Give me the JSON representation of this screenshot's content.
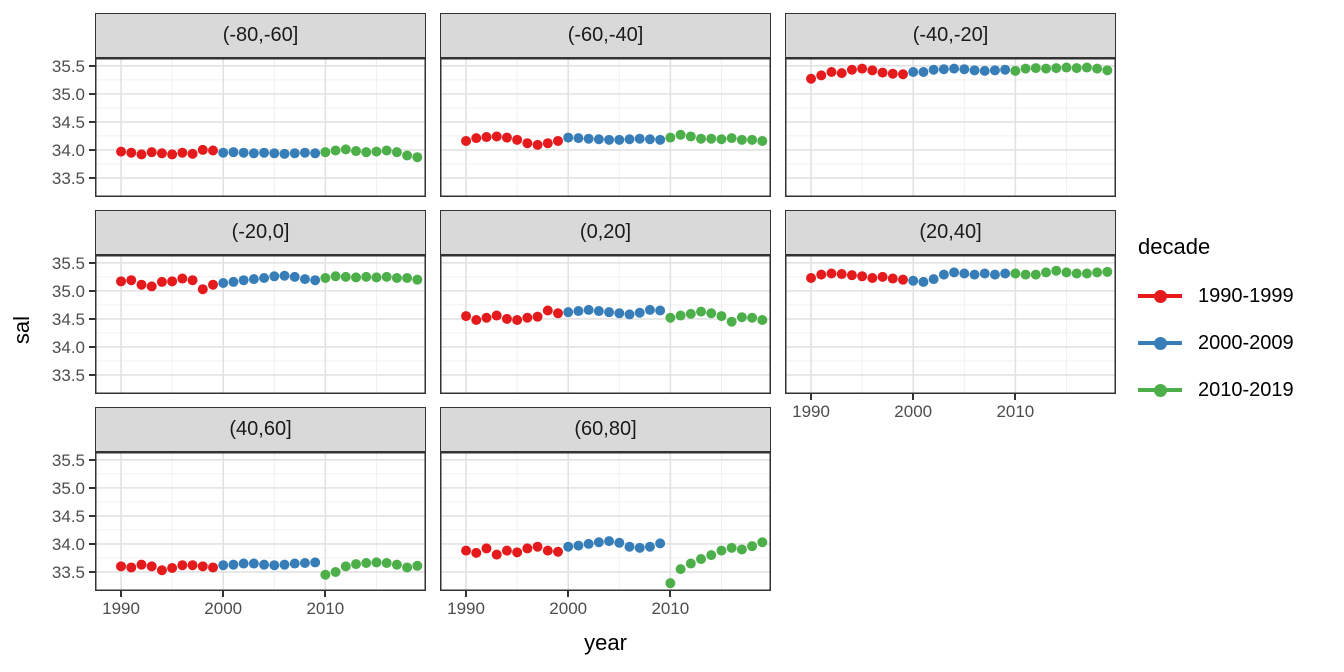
{
  "chart_data": {
    "type": "scatter",
    "title": "",
    "xlabel": "year",
    "ylabel": "sal",
    "legend_title": "decade",
    "legend_position": "right",
    "grid": true,
    "xlim": [
      1987.45,
      2019.85
    ],
    "ylim": [
      33.16,
      35.64
    ],
    "x_ticks": {
      "values": [
        1990,
        2000,
        2010
      ],
      "labels": [
        "1990",
        "2000",
        "2010"
      ]
    },
    "y_ticks": {
      "values": [
        35.5,
        35.0,
        34.5,
        34.0,
        33.5
      ],
      "labels": [
        "35.5",
        "35.0",
        "34.5",
        "34.0",
        "33.5"
      ]
    },
    "x_minor": [
      1995,
      2005,
      2015
    ],
    "y_minor": [
      35.25,
      34.75,
      34.25,
      33.75
    ],
    "series": [
      {
        "name": "1990-1999",
        "color": "#E41A1C",
        "years": [
          1990,
          1991,
          1992,
          1993,
          1994,
          1995,
          1996,
          1997,
          1998,
          1999
        ]
      },
      {
        "name": "2000-2009",
        "color": "#377EB8",
        "years": [
          2000,
          2001,
          2002,
          2003,
          2004,
          2005,
          2006,
          2007,
          2008,
          2009
        ]
      },
      {
        "name": "2010-2019",
        "color": "#4DAF4A",
        "years": [
          2010,
          2011,
          2012,
          2013,
          2014,
          2015,
          2016,
          2017,
          2018,
          2019
        ]
      }
    ],
    "facets": [
      {
        "label": "(-80,-60]",
        "values": {
          "1990-1999": [
            33.97,
            33.95,
            33.92,
            33.96,
            33.94,
            33.92,
            33.95,
            33.93,
            34.0,
            33.99
          ],
          "2000-2009": [
            33.95,
            33.96,
            33.95,
            33.94,
            33.95,
            33.94,
            33.93,
            33.94,
            33.95,
            33.94
          ],
          "2010-2019": [
            33.96,
            33.99,
            34.01,
            33.98,
            33.96,
            33.97,
            33.99,
            33.96,
            33.9,
            33.87
          ]
        }
      },
      {
        "label": "(-60,-40]",
        "values": {
          "1990-1999": [
            34.16,
            34.21,
            34.23,
            34.24,
            34.22,
            34.18,
            34.12,
            34.09,
            34.12,
            34.16
          ],
          "2000-2009": [
            34.22,
            34.21,
            34.2,
            34.19,
            34.18,
            34.18,
            34.19,
            34.2,
            34.19,
            34.18
          ],
          "2010-2019": [
            34.22,
            34.27,
            34.24,
            34.2,
            34.2,
            34.19,
            34.21,
            34.18,
            34.18,
            34.16
          ]
        }
      },
      {
        "label": "(-40,-20]",
        "values": {
          "1990-1999": [
            35.27,
            35.33,
            35.39,
            35.37,
            35.43,
            35.45,
            35.42,
            35.38,
            35.36,
            35.35
          ],
          "2000-2009": [
            35.39,
            35.39,
            35.43,
            35.44,
            35.45,
            35.44,
            35.42,
            35.41,
            35.42,
            35.43
          ],
          "2010-2019": [
            35.41,
            35.45,
            35.46,
            35.45,
            35.46,
            35.47,
            35.46,
            35.47,
            35.45,
            35.42
          ]
        }
      },
      {
        "label": "(-20,0]",
        "values": {
          "1990-1999": [
            35.17,
            35.19,
            35.11,
            35.08,
            35.16,
            35.17,
            35.22,
            35.19,
            35.03,
            35.11
          ],
          "2000-2009": [
            35.14,
            35.16,
            35.19,
            35.21,
            35.23,
            35.26,
            35.27,
            35.25,
            35.21,
            35.19
          ],
          "2010-2019": [
            35.23,
            35.26,
            35.25,
            35.24,
            35.25,
            35.24,
            35.25,
            35.23,
            35.23,
            35.2
          ]
        }
      },
      {
        "label": "(0,20]",
        "values": {
          "1990-1999": [
            34.55,
            34.48,
            34.52,
            34.56,
            34.5,
            34.48,
            34.52,
            34.54,
            34.65,
            34.6
          ],
          "2000-2009": [
            34.62,
            34.64,
            34.66,
            34.64,
            34.62,
            34.6,
            34.58,
            34.61,
            34.66,
            34.65
          ],
          "2010-2019": [
            34.52,
            34.56,
            34.59,
            34.63,
            34.6,
            34.55,
            34.45,
            34.53,
            34.52,
            34.48
          ]
        }
      },
      {
        "label": "(20,40]",
        "values": {
          "1990-1999": [
            35.23,
            35.29,
            35.31,
            35.3,
            35.28,
            35.26,
            35.23,
            35.25,
            35.22,
            35.2
          ],
          "2000-2009": [
            35.18,
            35.16,
            35.21,
            35.29,
            35.33,
            35.31,
            35.29,
            35.31,
            35.29,
            35.31
          ],
          "2010-2019": [
            35.31,
            35.29,
            35.29,
            35.33,
            35.36,
            35.33,
            35.31,
            35.31,
            35.33,
            35.34
          ]
        }
      },
      {
        "label": "(40,60]",
        "values": {
          "1990-1999": [
            33.6,
            33.58,
            33.63,
            33.6,
            33.53,
            33.57,
            33.62,
            33.62,
            33.6,
            33.58
          ],
          "2000-2009": [
            33.62,
            33.63,
            33.65,
            33.65,
            33.63,
            33.62,
            33.63,
            33.65,
            33.66,
            33.67
          ],
          "2010-2019": [
            33.45,
            33.5,
            33.6,
            33.64,
            33.66,
            33.67,
            33.66,
            33.63,
            33.58,
            33.61
          ]
        }
      },
      {
        "label": "(60,80]",
        "values": {
          "1990-1999": [
            33.88,
            33.84,
            33.92,
            33.81,
            33.88,
            33.85,
            33.92,
            33.95,
            33.88,
            33.86
          ],
          "2000-2009": [
            33.95,
            33.97,
            34.0,
            34.03,
            34.05,
            34.02,
            33.95,
            33.93,
            33.95,
            34.01
          ],
          "2010-2019": [
            33.3,
            33.55,
            33.65,
            33.73,
            33.8,
            33.88,
            33.93,
            33.9,
            33.96,
            34.03
          ]
        }
      }
    ],
    "colors": {
      "strip_background": "#D9D9D9",
      "panel_border": "#333333",
      "grid_major": "#E2E2E2",
      "grid_minor": "#F0F0F0",
      "tick_text": "#4d4d4d"
    }
  }
}
